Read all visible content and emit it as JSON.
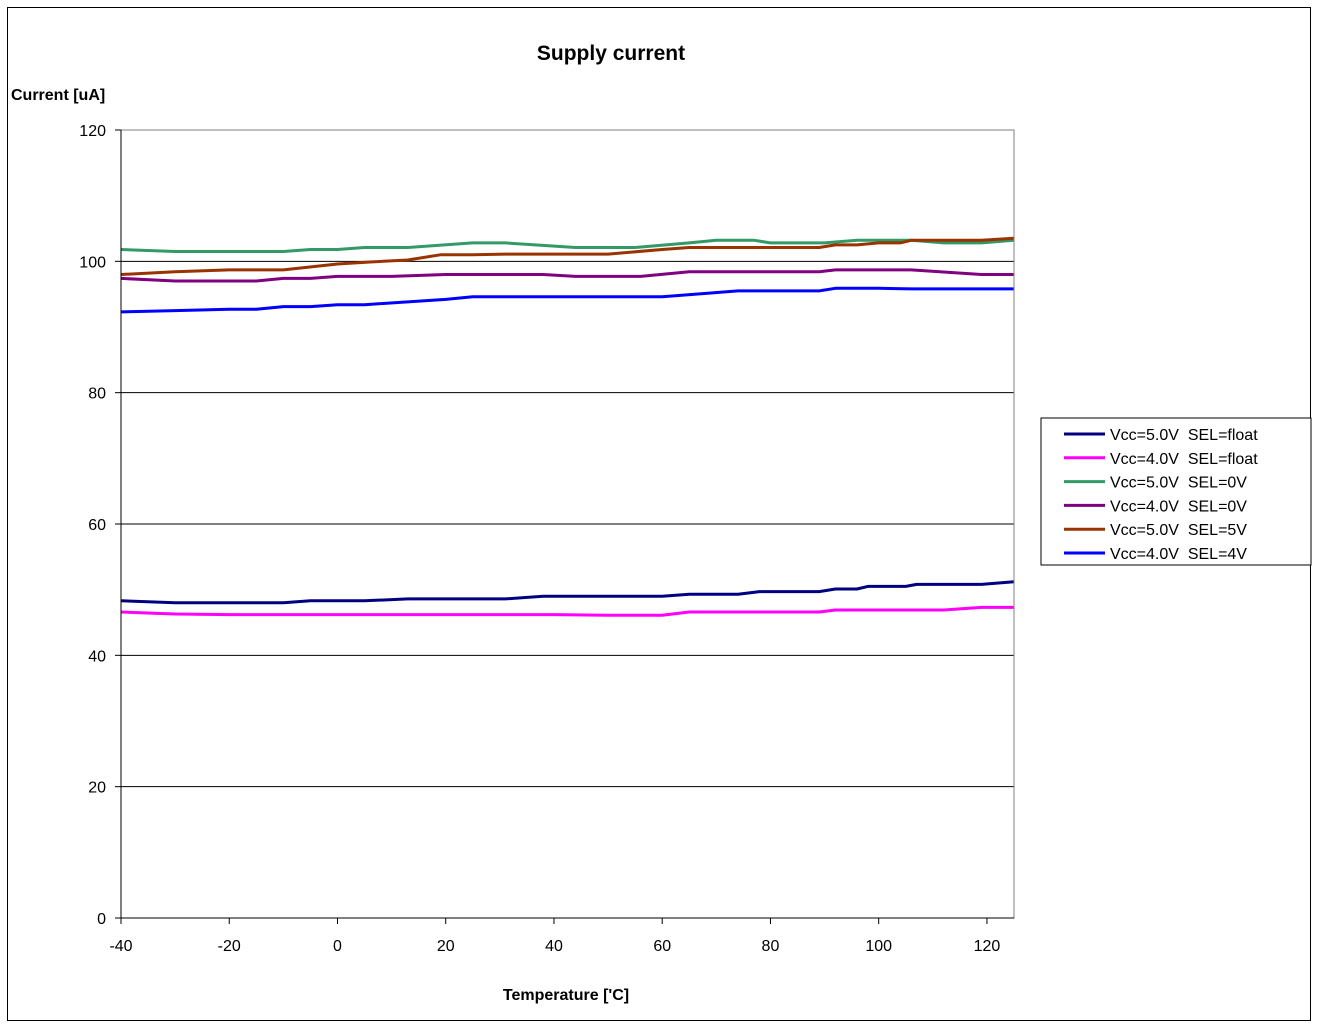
{
  "chart_data": {
    "type": "line",
    "title": "Supply current",
    "xlabel": "Temperature ['C]",
    "ylabel": "Current [uA]",
    "xlim": [
      -40,
      125
    ],
    "ylim": [
      0,
      120
    ],
    "xticks": [
      "-40",
      "-20",
      "0",
      "20",
      "40",
      "60",
      "80",
      "100",
      "120"
    ],
    "yticks": [
      "0",
      "20",
      "40",
      "60",
      "80",
      "100",
      "120"
    ],
    "grid": "horizontal",
    "legend_position": "right",
    "background": "#ffffff",
    "series": [
      {
        "name": "Vcc=5.0V  SEL=float",
        "color": "#000080",
        "x": [
          -40,
          -30,
          -20,
          -10,
          -5,
          0,
          5,
          13,
          25,
          31,
          38,
          50,
          60,
          65,
          74,
          78,
          89,
          92,
          96,
          98,
          105,
          107,
          119,
          125
        ],
        "y": [
          48.3,
          48.0,
          48.0,
          48.0,
          48.3,
          48.3,
          48.3,
          48.6,
          48.6,
          48.6,
          49.0,
          49.0,
          49.0,
          49.3,
          49.3,
          49.7,
          49.7,
          50.1,
          50.1,
          50.5,
          50.5,
          50.8,
          50.8,
          51.2
        ]
      },
      {
        "name": "Vcc=4.0V  SEL=float",
        "color": "#ff00ff",
        "x": [
          -40,
          -30,
          -20,
          -10,
          0,
          10,
          20,
          30,
          40,
          50,
          60,
          65,
          75,
          89,
          92,
          100,
          112,
          119,
          125
        ],
        "y": [
          46.6,
          46.3,
          46.2,
          46.2,
          46.2,
          46.2,
          46.2,
          46.2,
          46.2,
          46.1,
          46.1,
          46.6,
          46.6,
          46.6,
          46.9,
          46.9,
          46.9,
          47.3,
          47.3
        ]
      },
      {
        "name": "Vcc=5.0V  SEL=0V",
        "color": "#339966",
        "x": [
          -40,
          -30,
          -20,
          -10,
          -5,
          0,
          5,
          13,
          25,
          31,
          44,
          55,
          65,
          70,
          77,
          80,
          90,
          96,
          103,
          106,
          112,
          119,
          125
        ],
        "y": [
          101.8,
          101.5,
          101.5,
          101.5,
          101.8,
          101.8,
          102.1,
          102.1,
          102.8,
          102.8,
          102.1,
          102.1,
          102.8,
          103.2,
          103.2,
          102.8,
          102.8,
          103.2,
          103.2,
          103.2,
          102.8,
          102.8,
          103.2
        ]
      },
      {
        "name": "Vcc=4.0V  SEL=0V",
        "color": "#800080",
        "x": [
          -40,
          -30,
          -20,
          -15,
          -10,
          -5,
          0,
          10,
          20,
          30,
          38,
          44,
          56,
          65,
          80,
          89,
          92,
          106,
          119,
          125
        ],
        "y": [
          97.4,
          97.0,
          97.0,
          97.0,
          97.4,
          97.4,
          97.7,
          97.7,
          98.0,
          98.0,
          98.0,
          97.7,
          97.7,
          98.4,
          98.4,
          98.4,
          98.7,
          98.7,
          98.0,
          98.0
        ]
      },
      {
        "name": "Vcc=5.0V  SEL=5V",
        "color": "#993300",
        "x": [
          -40,
          -30,
          -20,
          -10,
          0,
          6,
          13,
          19,
          25,
          31,
          50,
          60,
          65,
          75,
          89,
          92,
          96,
          100,
          104,
          106,
          112,
          119,
          125
        ],
        "y": [
          98.0,
          98.4,
          98.7,
          98.7,
          99.6,
          99.9,
          100.2,
          101.0,
          101.0,
          101.1,
          101.1,
          101.8,
          102.1,
          102.1,
          102.1,
          102.5,
          102.5,
          102.8,
          102.8,
          103.2,
          103.2,
          103.2,
          103.5
        ]
      },
      {
        "name": "Vcc=4.0V  SEL=4V",
        "color": "#0000ff",
        "x": [
          -40,
          -30,
          -20,
          -15,
          -10,
          -5,
          0,
          5,
          20,
          25,
          50,
          60,
          66,
          74,
          80,
          89,
          92,
          100,
          106,
          119,
          125
        ],
        "y": [
          92.3,
          92.5,
          92.7,
          92.7,
          93.1,
          93.1,
          93.4,
          93.4,
          94.2,
          94.6,
          94.6,
          94.6,
          95.0,
          95.5,
          95.5,
          95.5,
          95.9,
          95.9,
          95.8,
          95.8,
          95.8
        ]
      }
    ]
  }
}
